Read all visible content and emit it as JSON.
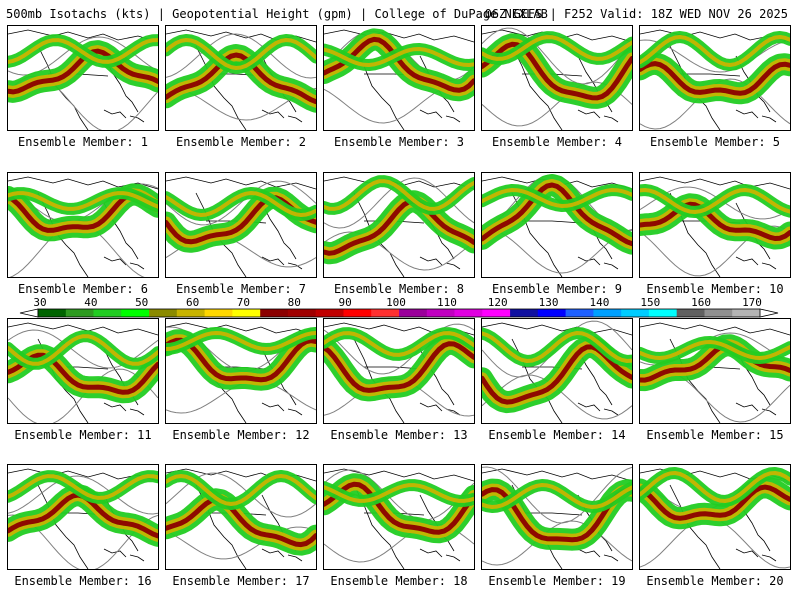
{
  "header": {
    "title_left": "500mb Isotachs (kts) | Geopotential Height (gpm) | College of DuPage NEXLAB",
    "title_right": "06Z GEFS | F252 Valid: 18Z WED NOV 26 2025"
  },
  "members": [
    {
      "label": "Ensemble Member: 1"
    },
    {
      "label": "Ensemble Member: 2"
    },
    {
      "label": "Ensemble Member: 3"
    },
    {
      "label": "Ensemble Member: 4"
    },
    {
      "label": "Ensemble Member: 5"
    },
    {
      "label": "Ensemble Member: 6"
    },
    {
      "label": "Ensemble Member: 7"
    },
    {
      "label": "Ensemble Member: 8"
    },
    {
      "label": "Ensemble Member: 9"
    },
    {
      "label": "Ensemble Member: 10"
    },
    {
      "label": "Ensemble Member: 11"
    },
    {
      "label": "Ensemble Member: 12"
    },
    {
      "label": "Ensemble Member: 13"
    },
    {
      "label": "Ensemble Member: 14"
    },
    {
      "label": "Ensemble Member: 15"
    },
    {
      "label": "Ensemble Member: 16"
    },
    {
      "label": "Ensemble Member: 17"
    },
    {
      "label": "Ensemble Member: 18"
    },
    {
      "label": "Ensemble Member: 19"
    },
    {
      "label": "Ensemble Member: 20"
    }
  ],
  "colorbar": {
    "ticks": [
      "30",
      "40",
      "50",
      "60",
      "70",
      "80",
      "90",
      "100",
      "110",
      "120",
      "130",
      "140",
      "150",
      "160",
      "170"
    ],
    "colors": [
      "#006400",
      "#2e9b20",
      "#22cc22",
      "#00ff00",
      "#8b8b00",
      "#c8b400",
      "#ffd700",
      "#ffff00",
      "#8b0000",
      "#a00000",
      "#c00000",
      "#ff0000",
      "#ff3030",
      "#9b009b",
      "#c000c0",
      "#e000e0",
      "#ff00ff",
      "#1010a0",
      "#0000ff",
      "#1e60ff",
      "#00a0ff",
      "#00ccff",
      "#00ffff",
      "#606060",
      "#909090",
      "#b4b4b4"
    ]
  },
  "map_colors": {
    "land_outline": "#000000",
    "height_contour": "#808080",
    "jet_light": "#22cc22",
    "jet_mid": "#c8b400",
    "jet_core": "#8b0000"
  }
}
